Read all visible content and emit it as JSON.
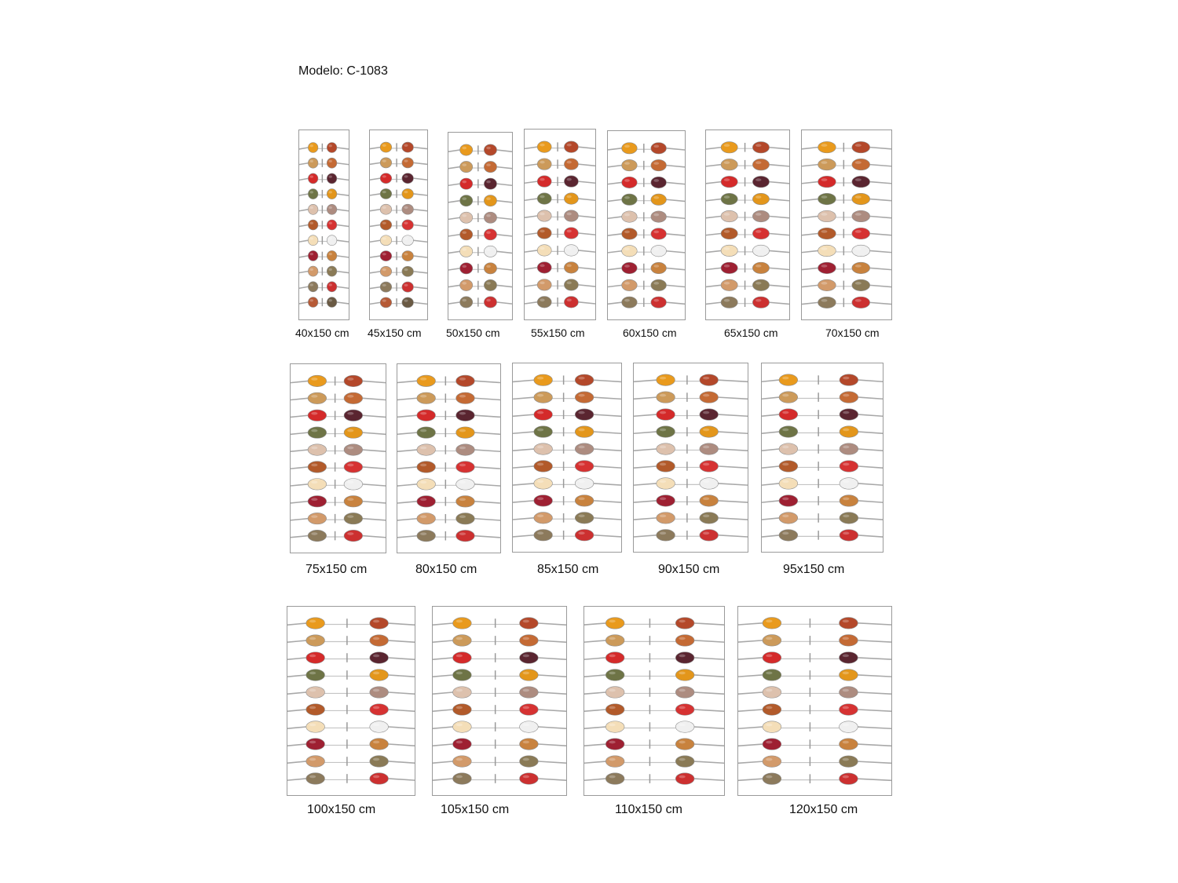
{
  "title": "Modelo: C-1083",
  "spice_colors": [
    [
      "#e99a1d",
      "#b4482a"
    ],
    [
      "#cc9a5a",
      "#c46a34"
    ],
    [
      "#d42a2a",
      "#5a2530"
    ],
    [
      "#6e7446",
      "#e3961b"
    ],
    [
      "#ddc1ad",
      "#ad8c80"
    ],
    [
      "#b25a2a",
      "#d63232"
    ],
    [
      "#f4deb8",
      "#f0f0f0"
    ],
    [
      "#9e2032",
      "#c8823e"
    ],
    [
      "#d29a6a",
      "#8a7a56"
    ],
    [
      "#8c7a5c",
      "#cc3030"
    ]
  ],
  "spice_colors_small_last_row": [
    "#b65a36",
    "#6a5a44"
  ],
  "panels": [
    {
      "size": "40x150 cm"
    },
    {
      "size": "45x150 cm"
    },
    {
      "size": "50x150 cm"
    },
    {
      "size": "55x150 cm"
    },
    {
      "size": "60x150 cm"
    },
    {
      "size": "65x150 cm"
    },
    {
      "size": "70x150 cm"
    },
    {
      "size": "75x150 cm"
    },
    {
      "size": "80x150 cm"
    },
    {
      "size": "85x150 cm"
    },
    {
      "size": "90x150 cm"
    },
    {
      "size": "95x150 cm"
    },
    {
      "size": "100x150 cm"
    },
    {
      "size": "105x150 cm"
    },
    {
      "size": "110x150 cm"
    },
    {
      "size": "120x150 cm"
    }
  ]
}
